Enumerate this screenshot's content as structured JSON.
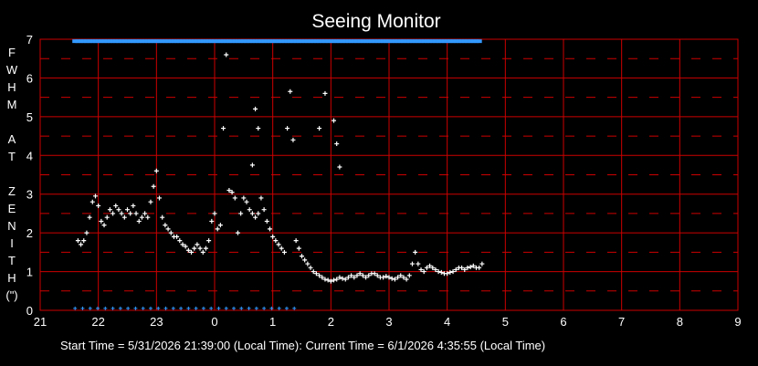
{
  "chart_data": {
    "type": "scatter",
    "title": "Seeing Monitor",
    "ylabel_letters": [
      "F",
      "W",
      "H",
      "M",
      "",
      "A",
      "T",
      "",
      "Z",
      "E",
      "N",
      "I",
      "T",
      "H",
      "(\")"
    ],
    "xlim": [
      21,
      33
    ],
    "ylim": [
      0,
      7
    ],
    "x_tick_labels": [
      "21",
      "22",
      "23",
      "0",
      "1",
      "2",
      "3",
      "4",
      "5",
      "6",
      "7",
      "8",
      "9"
    ],
    "y_tick_labels": [
      "0",
      "1",
      "2",
      "3",
      "4",
      "5",
      "6",
      "7"
    ],
    "grid": true,
    "grid_color": "#cc0000",
    "marker_color": "#ffffff",
    "status_color": "#3399ff",
    "status_bar": {
      "x_start": 21.6,
      "x_end": 28.55,
      "y": 6.95
    },
    "bottom_marks": {
      "x_start": 21.6,
      "x_end": 25.4,
      "y": 0.05
    },
    "series": [
      {
        "x": [
          21.65,
          21.7,
          21.75,
          21.8,
          21.85,
          21.9,
          21.95,
          22.0,
          22.05,
          22.1,
          22.15,
          22.2,
          22.25,
          22.3,
          22.35,
          22.4,
          22.45,
          22.5,
          22.55,
          22.6,
          22.65,
          22.7,
          22.75,
          22.8,
          22.85,
          22.9,
          22.95,
          23.0,
          23.05,
          23.1,
          23.15,
          23.2,
          23.25,
          23.3,
          23.35,
          23.4,
          23.45,
          23.5,
          23.55,
          23.6,
          23.65,
          23.7,
          23.75,
          23.8,
          23.85,
          23.9,
          23.95,
          24.0,
          24.05,
          24.1,
          24.15,
          24.2,
          24.25,
          24.3,
          24.35,
          24.4,
          24.45,
          24.5,
          24.55,
          24.6,
          24.65,
          24.7,
          24.75,
          24.8,
          24.85,
          24.9,
          24.95,
          25.0,
          25.05,
          25.1,
          25.15,
          25.2,
          25.25,
          25.3,
          25.35,
          25.4,
          25.45,
          25.5,
          25.55,
          25.6,
          25.65,
          25.7,
          25.75,
          25.8,
          25.85,
          25.9,
          25.95,
          26.0,
          26.05,
          26.1,
          26.15,
          26.2,
          26.25,
          26.3,
          26.35,
          26.4,
          26.45,
          26.5,
          26.55,
          26.6,
          26.65,
          26.7,
          26.75,
          26.8,
          26.85,
          26.9,
          26.95,
          27.0,
          27.05,
          27.1,
          27.15,
          27.2,
          27.25,
          27.3,
          27.35,
          27.4,
          27.45,
          27.5,
          27.55,
          27.6,
          27.65,
          27.7,
          27.75,
          27.8,
          27.85,
          27.9,
          27.95,
          28.0,
          28.05,
          28.1,
          28.15,
          28.2,
          28.25,
          28.3,
          28.35,
          28.4,
          28.45,
          28.5,
          28.55,
          28.6
        ],
        "y": [
          1.8,
          1.7,
          1.8,
          2.0,
          2.4,
          2.8,
          2.95,
          2.7,
          2.3,
          2.2,
          2.4,
          2.6,
          2.5,
          2.7,
          2.6,
          2.5,
          2.4,
          2.6,
          2.5,
          2.7,
          2.5,
          2.3,
          2.4,
          2.5,
          2.4,
          2.8,
          3.2,
          3.6,
          2.9,
          2.4,
          2.2,
          2.1,
          2.0,
          1.9,
          1.9,
          1.8,
          1.7,
          1.65,
          1.55,
          1.5,
          1.6,
          1.7,
          1.6,
          1.5,
          1.6,
          1.8,
          2.3,
          2.5,
          2.1,
          2.2,
          4.7,
          6.6,
          3.1,
          3.05,
          2.9,
          2.0,
          2.5,
          2.9,
          2.8,
          2.6,
          2.5,
          2.4,
          2.5,
          2.9,
          2.6,
          2.3,
          2.1,
          1.9,
          1.8,
          1.7,
          1.6,
          1.5,
          4.7,
          5.65,
          4.4,
          1.8,
          1.6,
          1.4,
          1.3,
          1.2,
          1.1,
          1.0,
          0.95,
          0.9,
          0.85,
          0.8,
          0.78,
          0.75,
          0.78,
          0.8,
          0.85,
          0.82,
          0.8,
          0.85,
          0.9,
          0.85,
          0.9,
          0.95,
          0.9,
          0.85,
          0.9,
          0.95,
          0.95,
          0.9,
          0.85,
          0.85,
          0.88,
          0.85,
          0.82,
          0.8,
          0.85,
          0.9,
          0.85,
          0.8,
          0.9,
          1.2,
          1.5,
          1.2,
          1.05,
          1.0,
          1.1,
          1.15,
          1.1,
          1.05,
          1.0,
          0.98,
          0.95,
          0.95,
          0.98,
          1.0,
          1.05,
          1.1,
          1.1,
          1.05,
          1.1,
          1.12,
          1.15,
          1.1,
          1.1,
          1.2
        ]
      }
    ],
    "extra_points": [
      {
        "x": 24.65,
        "y": 3.75
      },
      {
        "x": 24.7,
        "y": 5.2
      },
      {
        "x": 24.75,
        "y": 4.7
      },
      {
        "x": 25.8,
        "y": 4.7
      },
      {
        "x": 25.9,
        "y": 5.6
      },
      {
        "x": 26.05,
        "y": 4.9
      },
      {
        "x": 26.1,
        "y": 4.3
      },
      {
        "x": 26.15,
        "y": 3.7
      }
    ]
  },
  "footer": {
    "text": "Start Time = 5/31/2026 21:39:00 (Local Time): Current Time = 6/1/2026 4:35:55 (Local Time)"
  }
}
